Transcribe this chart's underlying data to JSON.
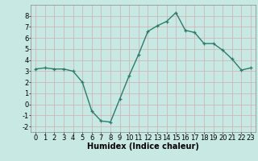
{
  "x": [
    0,
    1,
    2,
    3,
    4,
    5,
    6,
    7,
    8,
    9,
    10,
    11,
    12,
    13,
    14,
    15,
    16,
    17,
    18,
    19,
    20,
    21,
    22,
    23
  ],
  "y": [
    3.2,
    3.3,
    3.2,
    3.2,
    3.0,
    2.0,
    -0.6,
    -1.5,
    -1.6,
    0.5,
    2.6,
    4.5,
    6.6,
    7.1,
    7.5,
    8.3,
    6.7,
    6.5,
    5.5,
    5.5,
    4.9,
    4.1,
    3.1,
    3.3
  ],
  "line_color": "#2a7d6b",
  "marker": "+",
  "marker_size": 3,
  "line_width": 1.0,
  "xlabel": "Humidex (Indice chaleur)",
  "xlabel_fontsize": 7,
  "ylim": [
    -2.5,
    9.0
  ],
  "xlim": [
    -0.5,
    23.5
  ],
  "yticks": [
    -2,
    -1,
    0,
    1,
    2,
    3,
    4,
    5,
    6,
    7,
    8
  ],
  "xticks": [
    0,
    1,
    2,
    3,
    4,
    5,
    6,
    7,
    8,
    9,
    10,
    11,
    12,
    13,
    14,
    15,
    16,
    17,
    18,
    19,
    20,
    21,
    22,
    23
  ],
  "grid_color": "#d0b8b8",
  "bg_color": "#c8e8e4",
  "tick_fontsize": 6,
  "markeredgewidth": 0.9
}
